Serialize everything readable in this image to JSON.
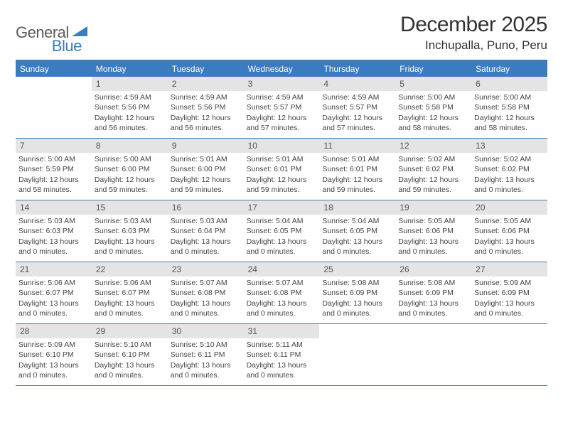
{
  "logo": {
    "part1": "General",
    "part2": "Blue"
  },
  "title": "December 2025",
  "location": "Inchupalla, Puno, Peru",
  "colors": {
    "accent": "#3b7bbf",
    "header_bg": "#3b7bbf",
    "header_text": "#ffffff",
    "daynum_bg": "#e4e4e4",
    "border": "#3b7bbf",
    "background": "#ffffff",
    "text": "#333333"
  },
  "typography": {
    "title_fontsize": 30,
    "location_fontsize": 17,
    "dayheader_fontsize": 12,
    "daynum_fontsize": 12,
    "body_fontsize": 10.5,
    "font_family": "Arial"
  },
  "layout": {
    "columns": 7,
    "rows": 5,
    "start_offset": 1
  },
  "day_names": [
    "Sunday",
    "Monday",
    "Tuesday",
    "Wednesday",
    "Thursday",
    "Friday",
    "Saturday"
  ],
  "days": [
    {
      "n": 1,
      "sunrise": "Sunrise: 4:59 AM",
      "sunset": "Sunset: 5:56 PM",
      "daylight": "Daylight: 12 hours and 56 minutes."
    },
    {
      "n": 2,
      "sunrise": "Sunrise: 4:59 AM",
      "sunset": "Sunset: 5:56 PM",
      "daylight": "Daylight: 12 hours and 56 minutes."
    },
    {
      "n": 3,
      "sunrise": "Sunrise: 4:59 AM",
      "sunset": "Sunset: 5:57 PM",
      "daylight": "Daylight: 12 hours and 57 minutes."
    },
    {
      "n": 4,
      "sunrise": "Sunrise: 4:59 AM",
      "sunset": "Sunset: 5:57 PM",
      "daylight": "Daylight: 12 hours and 57 minutes."
    },
    {
      "n": 5,
      "sunrise": "Sunrise: 5:00 AM",
      "sunset": "Sunset: 5:58 PM",
      "daylight": "Daylight: 12 hours and 58 minutes."
    },
    {
      "n": 6,
      "sunrise": "Sunrise: 5:00 AM",
      "sunset": "Sunset: 5:58 PM",
      "daylight": "Daylight: 12 hours and 58 minutes."
    },
    {
      "n": 7,
      "sunrise": "Sunrise: 5:00 AM",
      "sunset": "Sunset: 5:59 PM",
      "daylight": "Daylight: 12 hours and 58 minutes."
    },
    {
      "n": 8,
      "sunrise": "Sunrise: 5:00 AM",
      "sunset": "Sunset: 6:00 PM",
      "daylight": "Daylight: 12 hours and 59 minutes."
    },
    {
      "n": 9,
      "sunrise": "Sunrise: 5:01 AM",
      "sunset": "Sunset: 6:00 PM",
      "daylight": "Daylight: 12 hours and 59 minutes."
    },
    {
      "n": 10,
      "sunrise": "Sunrise: 5:01 AM",
      "sunset": "Sunset: 6:01 PM",
      "daylight": "Daylight: 12 hours and 59 minutes."
    },
    {
      "n": 11,
      "sunrise": "Sunrise: 5:01 AM",
      "sunset": "Sunset: 6:01 PM",
      "daylight": "Daylight: 12 hours and 59 minutes."
    },
    {
      "n": 12,
      "sunrise": "Sunrise: 5:02 AM",
      "sunset": "Sunset: 6:02 PM",
      "daylight": "Daylight: 12 hours and 59 minutes."
    },
    {
      "n": 13,
      "sunrise": "Sunrise: 5:02 AM",
      "sunset": "Sunset: 6:02 PM",
      "daylight": "Daylight: 13 hours and 0 minutes."
    },
    {
      "n": 14,
      "sunrise": "Sunrise: 5:03 AM",
      "sunset": "Sunset: 6:03 PM",
      "daylight": "Daylight: 13 hours and 0 minutes."
    },
    {
      "n": 15,
      "sunrise": "Sunrise: 5:03 AM",
      "sunset": "Sunset: 6:03 PM",
      "daylight": "Daylight: 13 hours and 0 minutes."
    },
    {
      "n": 16,
      "sunrise": "Sunrise: 5:03 AM",
      "sunset": "Sunset: 6:04 PM",
      "daylight": "Daylight: 13 hours and 0 minutes."
    },
    {
      "n": 17,
      "sunrise": "Sunrise: 5:04 AM",
      "sunset": "Sunset: 6:05 PM",
      "daylight": "Daylight: 13 hours and 0 minutes."
    },
    {
      "n": 18,
      "sunrise": "Sunrise: 5:04 AM",
      "sunset": "Sunset: 6:05 PM",
      "daylight": "Daylight: 13 hours and 0 minutes."
    },
    {
      "n": 19,
      "sunrise": "Sunrise: 5:05 AM",
      "sunset": "Sunset: 6:06 PM",
      "daylight": "Daylight: 13 hours and 0 minutes."
    },
    {
      "n": 20,
      "sunrise": "Sunrise: 5:05 AM",
      "sunset": "Sunset: 6:06 PM",
      "daylight": "Daylight: 13 hours and 0 minutes."
    },
    {
      "n": 21,
      "sunrise": "Sunrise: 5:06 AM",
      "sunset": "Sunset: 6:07 PM",
      "daylight": "Daylight: 13 hours and 0 minutes."
    },
    {
      "n": 22,
      "sunrise": "Sunrise: 5:06 AM",
      "sunset": "Sunset: 6:07 PM",
      "daylight": "Daylight: 13 hours and 0 minutes."
    },
    {
      "n": 23,
      "sunrise": "Sunrise: 5:07 AM",
      "sunset": "Sunset: 6:08 PM",
      "daylight": "Daylight: 13 hours and 0 minutes."
    },
    {
      "n": 24,
      "sunrise": "Sunrise: 5:07 AM",
      "sunset": "Sunset: 6:08 PM",
      "daylight": "Daylight: 13 hours and 0 minutes."
    },
    {
      "n": 25,
      "sunrise": "Sunrise: 5:08 AM",
      "sunset": "Sunset: 6:09 PM",
      "daylight": "Daylight: 13 hours and 0 minutes."
    },
    {
      "n": 26,
      "sunrise": "Sunrise: 5:08 AM",
      "sunset": "Sunset: 6:09 PM",
      "daylight": "Daylight: 13 hours and 0 minutes."
    },
    {
      "n": 27,
      "sunrise": "Sunrise: 5:09 AM",
      "sunset": "Sunset: 6:09 PM",
      "daylight": "Daylight: 13 hours and 0 minutes."
    },
    {
      "n": 28,
      "sunrise": "Sunrise: 5:09 AM",
      "sunset": "Sunset: 6:10 PM",
      "daylight": "Daylight: 13 hours and 0 minutes."
    },
    {
      "n": 29,
      "sunrise": "Sunrise: 5:10 AM",
      "sunset": "Sunset: 6:10 PM",
      "daylight": "Daylight: 13 hours and 0 minutes."
    },
    {
      "n": 30,
      "sunrise": "Sunrise: 5:10 AM",
      "sunset": "Sunset: 6:11 PM",
      "daylight": "Daylight: 13 hours and 0 minutes."
    },
    {
      "n": 31,
      "sunrise": "Sunrise: 5:11 AM",
      "sunset": "Sunset: 6:11 PM",
      "daylight": "Daylight: 13 hours and 0 minutes."
    }
  ]
}
